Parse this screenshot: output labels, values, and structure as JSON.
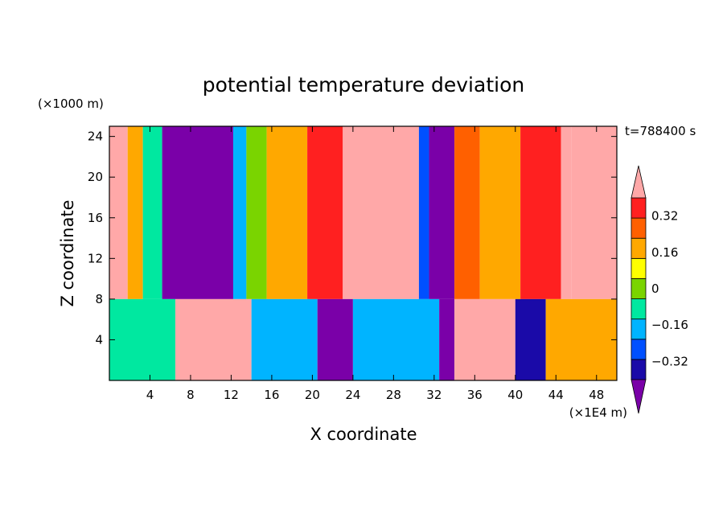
{
  "chart_data": {
    "type": "heatmap",
    "title": "potential temperature deviation",
    "xlabel": "X coordinate",
    "ylabel": "Z coordinate",
    "x_unit": "(×1E4 m)",
    "y_unit": "(×1000 m)",
    "time_label": "t=788400 s",
    "xlim": [
      0,
      50
    ],
    "ylim": [
      0,
      25
    ],
    "x_ticks": [
      "4",
      "8",
      "12",
      "16",
      "20",
      "24",
      "28",
      "32",
      "36",
      "40",
      "44",
      "48"
    ],
    "x_tick_values": [
      4,
      8,
      12,
      16,
      20,
      24,
      28,
      32,
      36,
      40,
      44,
      48
    ],
    "y_ticks": [
      "4",
      "8",
      "12",
      "16",
      "20",
      "24"
    ],
    "y_tick_values": [
      4,
      8,
      12,
      16,
      20,
      24
    ],
    "colorbar": {
      "levels": [
        -0.4,
        -0.32,
        -0.24,
        -0.16,
        -0.08,
        0,
        0.08,
        0.16,
        0.24,
        0.32,
        0.4
      ],
      "labels": [
        "0.32",
        "0.16",
        "0",
        "−0.16",
        "−0.32"
      ],
      "label_values": [
        0.32,
        0.16,
        0,
        -0.16,
        -0.32
      ],
      "colors": [
        "#7a00a8",
        "#1a0aa8",
        "#0050ff",
        "#00b4ff",
        "#00e8a0",
        "#7ad400",
        "#ffff00",
        "#ffa800",
        "#ff6000",
        "#ff2020",
        "#ffa8a8"
      ],
      "extend": "both"
    },
    "tropopause_height": 8,
    "upper_layer_bands": [
      {
        "x": [
          0,
          1.8
        ],
        "value": 0.36
      },
      {
        "x": [
          1.8,
          3.3
        ],
        "value": 0.14
      },
      {
        "x": [
          3.3,
          5.2
        ],
        "value": -0.12
      },
      {
        "x": [
          5.2,
          12.2
        ],
        "value": -0.45
      },
      {
        "x": [
          12.2,
          13.5
        ],
        "value": -0.2
      },
      {
        "x": [
          13.5,
          15.5
        ],
        "value": -0.02
      },
      {
        "x": [
          15.5,
          19.5
        ],
        "value": 0.12
      },
      {
        "x": [
          19.5,
          23
        ],
        "value": 0.26
      },
      {
        "x": [
          23,
          30.5
        ],
        "value": 0.45
      },
      {
        "x": [
          30.5,
          31.5
        ],
        "value": -0.3
      },
      {
        "x": [
          31.5,
          34
        ],
        "value": -0.45
      },
      {
        "x": [
          34,
          36.5
        ],
        "value": 0.18
      },
      {
        "x": [
          36.5,
          40.5
        ],
        "value": 0.14
      },
      {
        "x": [
          40.5,
          44.5
        ],
        "value": 0.24
      },
      {
        "x": [
          44.5,
          45.5
        ],
        "value": 0.33
      },
      {
        "x": [
          45.5,
          50
        ],
        "value": 0.45
      }
    ],
    "lower_layer_bands": [
      {
        "x": [
          0,
          6.5
        ],
        "value": -0.1
      },
      {
        "x": [
          6.5,
          14
        ],
        "value": 0.45
      },
      {
        "x": [
          14,
          20.5
        ],
        "value": -0.2
      },
      {
        "x": [
          20.5,
          24
        ],
        "value": -0.45
      },
      {
        "x": [
          24,
          32.5
        ],
        "value": -0.2
      },
      {
        "x": [
          32.5,
          34
        ],
        "value": -0.45
      },
      {
        "x": [
          34,
          40
        ],
        "value": 0.45
      },
      {
        "x": [
          40,
          43
        ],
        "value": -0.35
      },
      {
        "x": [
          43,
          50
        ],
        "value": 0.1
      }
    ]
  }
}
